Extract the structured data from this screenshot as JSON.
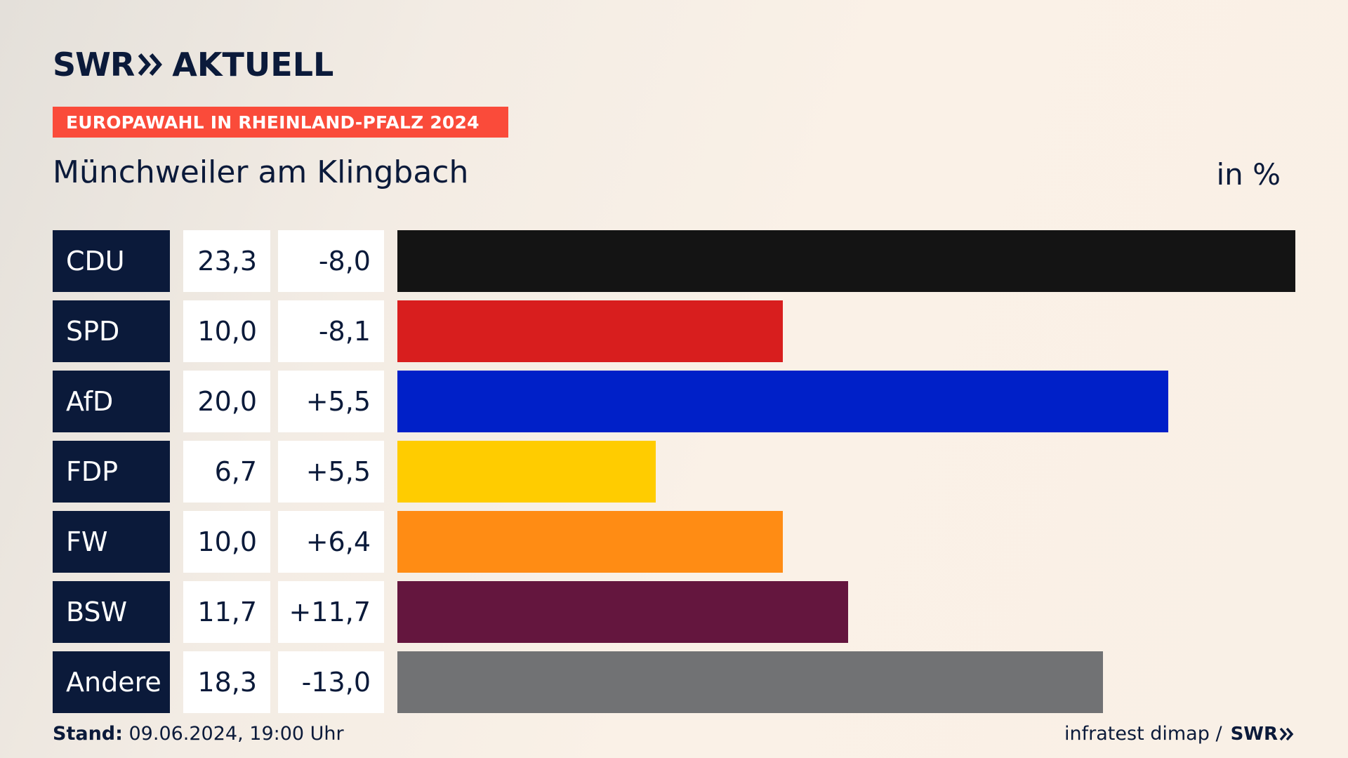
{
  "brand": {
    "swr": "SWR",
    "aktuell": "AKTUELL"
  },
  "header": {
    "badge": "EUROPAWAHL IN RHEINLAND-PFALZ 2024",
    "region": "Münchweiler am Klingbach",
    "unit": "in %"
  },
  "chart_data": {
    "type": "bar",
    "orientation": "horizontal",
    "categories": [
      "CDU",
      "SPD",
      "AfD",
      "FDP",
      "FW",
      "BSW",
      "Andere"
    ],
    "values": [
      23.3,
      10.0,
      20.0,
      6.7,
      10.0,
      11.7,
      18.3
    ],
    "value_labels": [
      "23,3",
      "10,0",
      "20,0",
      "6,7",
      "10,0",
      "11,7",
      "18,3"
    ],
    "diff_labels": [
      "-8,0",
      "-8,1",
      "+5,5",
      "+5,5",
      "+6,4",
      "+11,7",
      "-13,0"
    ],
    "colors": [
      "#141414",
      "#d81e1e",
      "#0020c8",
      "#ffcc00",
      "#ff8c14",
      "#64163e",
      "#717274"
    ],
    "title": "Münchweiler am Klingbach",
    "unit": "in %",
    "xlim": [
      0,
      23.3
    ]
  },
  "footer": {
    "stand_label": "Stand:",
    "stand_value": " 09.06.2024, 19:00 Uhr",
    "source": "infratest dimap /",
    "source_brand": "SWR"
  },
  "colors": {
    "navy": "#0b1a3a",
    "badge": "#fa4b3a"
  },
  "icons": {
    "brand_arrow": "double-chevron-right-icon"
  }
}
